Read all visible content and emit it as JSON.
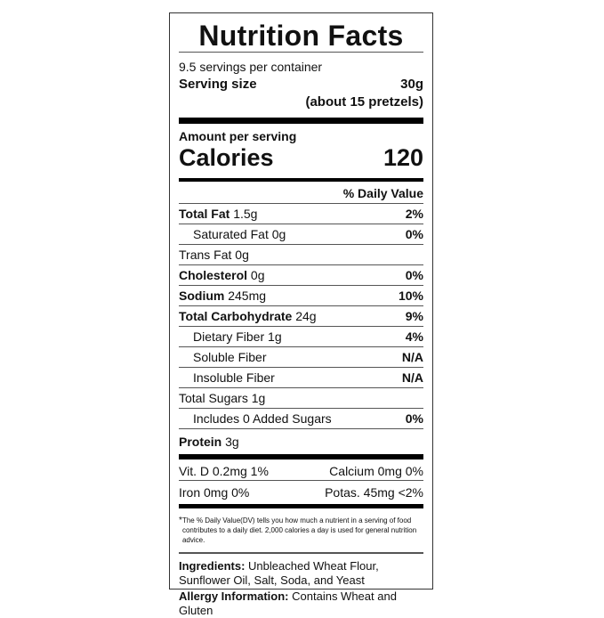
{
  "title": "Nutrition Facts",
  "servings_per_container": "9.5 servings per container",
  "serving_size": {
    "label": "Serving size",
    "amount": "30g",
    "description": "(about 15 pretzels)"
  },
  "amount_per_serving": "Amount per serving",
  "calories": {
    "label": "Calories",
    "value": "120"
  },
  "daily_value_header": "% Daily Value",
  "nutrients": [
    {
      "name": "Total Fat",
      "amount": "1.5g",
      "dv": "2%",
      "bold": true,
      "indent": false
    },
    {
      "name": "Saturated Fat",
      "amount": "0g",
      "dv": "0%",
      "bold": false,
      "indent": true
    },
    {
      "name": "Trans Fat",
      "amount": "0g",
      "dv": "",
      "bold": false,
      "indent": false
    },
    {
      "name": "Cholesterol",
      "amount": "0g",
      "dv": "0%",
      "bold": true,
      "indent": false
    },
    {
      "name": "Sodium",
      "amount": "245mg",
      "dv": "10%",
      "bold": true,
      "indent": false
    },
    {
      "name": "Total Carbohydrate",
      "amount": "24g",
      "dv": "9%",
      "bold": true,
      "indent": false
    },
    {
      "name": "Dietary Fiber",
      "amount": "1g",
      "dv": "4%",
      "bold": false,
      "indent": true
    },
    {
      "name": "Soluble Fiber",
      "amount": "",
      "dv": "N/A",
      "bold": false,
      "indent": true
    },
    {
      "name": "Insoluble Fiber",
      "amount": "",
      "dv": "N/A",
      "bold": false,
      "indent": true
    },
    {
      "name": "Total Sugars",
      "amount": "1g",
      "dv": "",
      "bold": false,
      "indent": false
    },
    {
      "name": "Includes 0 Added Sugars",
      "amount": "",
      "dv": "0%",
      "bold": false,
      "indent": true
    },
    {
      "name": "Protein",
      "amount": "3g",
      "dv": "",
      "bold": true,
      "indent": false
    }
  ],
  "vitamins": [
    {
      "left": "Vit. D 0.2mg 1%",
      "right": "Calcium 0mg 0%"
    },
    {
      "left": "Iron 0mg 0%",
      "right": "Potas. 45mg <2%"
    }
  ],
  "footnote": {
    "mark": "*",
    "text": "The % Daily Value(DV) tells you how much a nutrient in a serving of food contributes to a daily diet. 2,000 calories a day is used for general nutrition advice."
  },
  "ingredients": {
    "label": "Ingredients:",
    "text": "Unbleached Wheat Flour, Sunflower Oil, Salt, Soda, and Yeast"
  },
  "allergy": {
    "label": "Allergy Information:",
    "text": "Contains Wheat and Gluten"
  }
}
